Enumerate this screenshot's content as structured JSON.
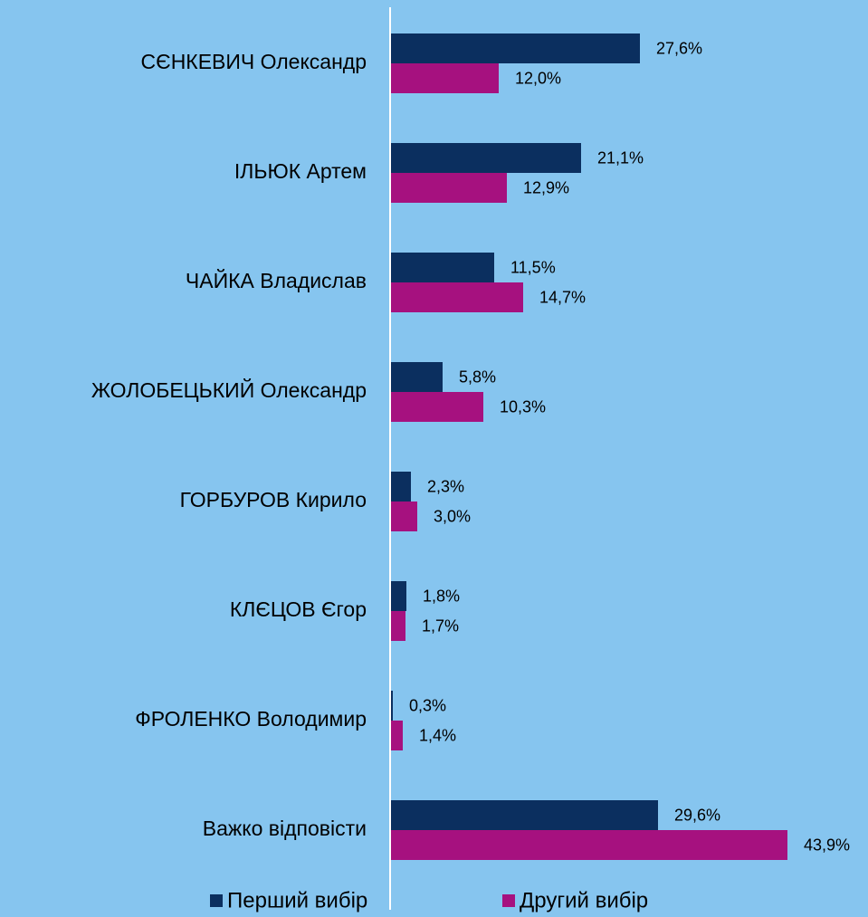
{
  "chart_data": {
    "type": "bar",
    "orientation": "horizontal",
    "categories": [
      "СЄНКЕВИЧ Олександр",
      "ІЛЬЮК Артем",
      "ЧАЙКА Владислав",
      "ЖОЛОБЕЦЬКИЙ Олександр",
      "ГОРБУРОВ Кирило",
      "КЛЄЦОВ Єгор",
      "ФРОЛЕНКО Володимир",
      "Важко відповісти"
    ],
    "series": [
      {
        "name": "Перший вибір",
        "color": "#0b2f5f",
        "values": [
          27.6,
          21.1,
          11.5,
          5.8,
          2.3,
          1.8,
          0.3,
          29.6
        ],
        "value_labels": [
          "27,6%",
          "21,1%",
          "11,5%",
          "5,8%",
          "2,3%",
          "1,8%",
          "0,3%",
          "29,6%"
        ]
      },
      {
        "name": "Другий вибір",
        "color": "#a6117f",
        "values": [
          12.0,
          12.9,
          14.7,
          10.3,
          3.0,
          1.7,
          1.4,
          43.9
        ],
        "value_labels": [
          "12,0%",
          "12,9%",
          "14,7%",
          "10,3%",
          "3,0%",
          "1,7%",
          "1,4%",
          "43,9%"
        ]
      }
    ],
    "legend": "bottom"
  }
}
